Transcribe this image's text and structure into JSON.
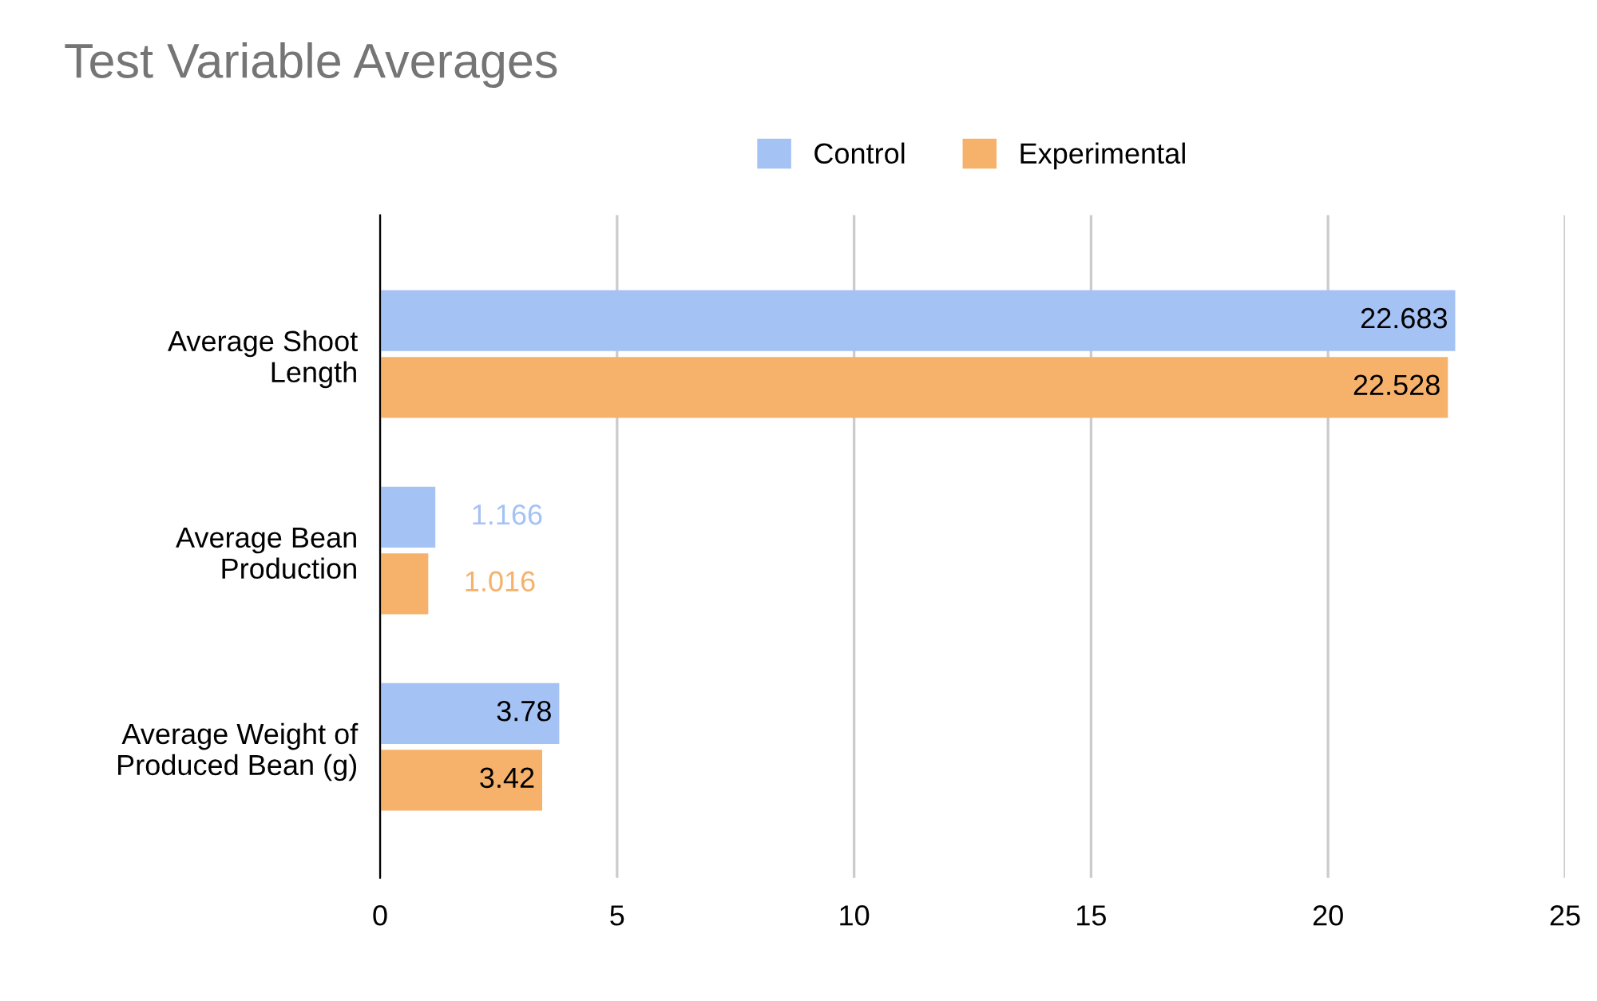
{
  "chart_data": {
    "type": "bar",
    "orientation": "horizontal",
    "title": "Test Variable Averages",
    "categories": [
      "Average Shoot\nLength",
      "Average Bean\nProduction",
      "Average Weight of\nProduced Bean (g)"
    ],
    "series": [
      {
        "name": "Control",
        "color": "#a4c2f4",
        "values": [
          22.683,
          1.166,
          3.78
        ]
      },
      {
        "name": "Experimental",
        "color": "#f6b26b",
        "values": [
          22.528,
          1.016,
          3.42
        ]
      }
    ],
    "xlim": [
      0,
      25
    ],
    "xticks": [
      0,
      5,
      10,
      15,
      20,
      25
    ],
    "grid": "x",
    "legend": "top",
    "data_labels": true
  }
}
